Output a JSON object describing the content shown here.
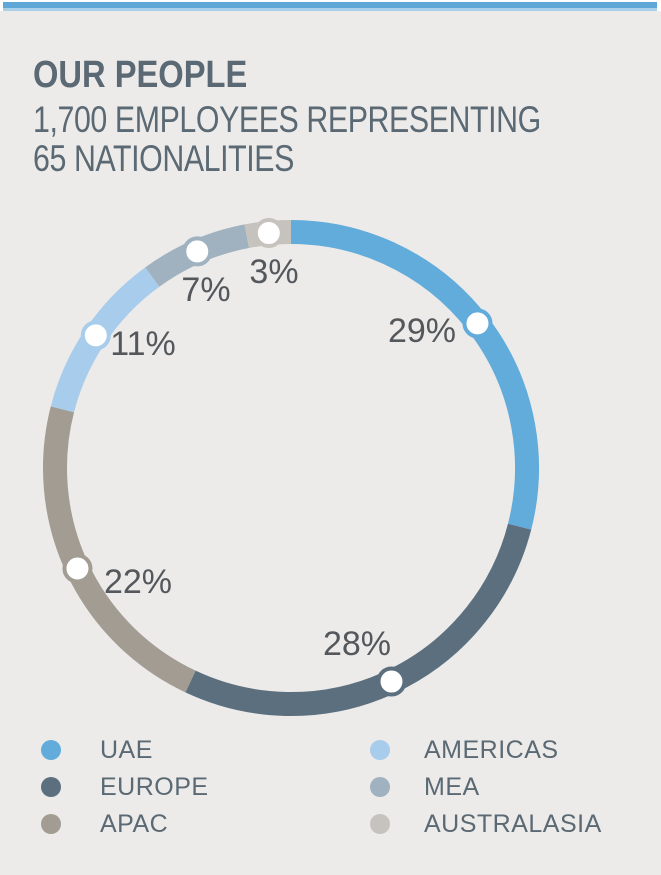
{
  "page": {
    "accent_bar_color": "#5EA7D7",
    "accent_bar_light_color": "#A9CFE9",
    "background_color": "#ECEBE9",
    "text_color": "#5A6973",
    "percent_label_color": "#54585C"
  },
  "header": {
    "title": "OUR PEOPLE",
    "subtitle_line1": "1,700 EMPLOYEES REPRESENTING",
    "subtitle_line2": "65 NATIONALITIES"
  },
  "chart_data": {
    "type": "pie",
    "subtype": "donut",
    "title": "OUR PEOPLE",
    "subtitle": "1,700 EMPLOYEES REPRESENTING 65 NATIONALITIES",
    "unit": "%",
    "start_angle_deg": 0,
    "direction": "clockwise",
    "legend_position": "bottom",
    "marker_style": "white-dot-on-ring",
    "segments": [
      {
        "label": "UAE",
        "value": 29,
        "display": "29%",
        "color": "#62ACDB"
      },
      {
        "label": "EUROPE",
        "value": 28,
        "display": "28%",
        "color": "#5C6F7E"
      },
      {
        "label": "APAC",
        "value": 22,
        "display": "22%",
        "color": "#A29C93"
      },
      {
        "label": "AMERICAS",
        "value": 11,
        "display": "11%",
        "color": "#A8CCEB"
      },
      {
        "label": "MEA",
        "value": 7,
        "display": "7%",
        "color": "#A0B2BF"
      },
      {
        "label": "AUSTRALASIA",
        "value": 3,
        "display": "3%",
        "color": "#C6C3BE"
      }
    ],
    "legend_columns": [
      [
        "UAE",
        "EUROPE",
        "APAC"
      ],
      [
        "AMERICAS",
        "MEA",
        "AUSTRALASIA"
      ]
    ]
  }
}
